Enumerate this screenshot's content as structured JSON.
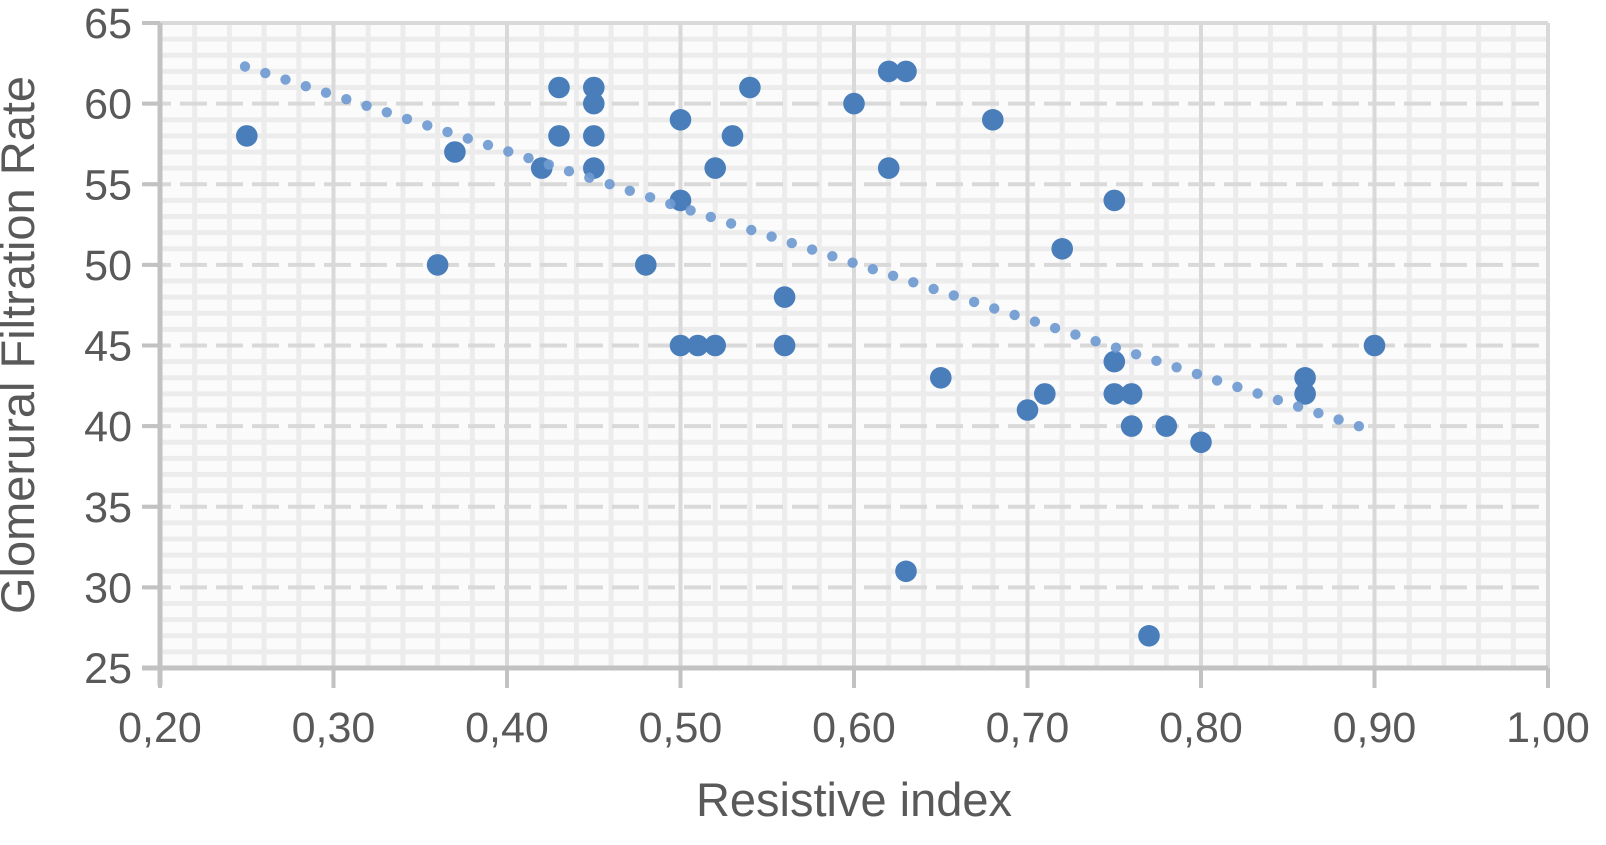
{
  "chart_data": {
    "type": "scatter",
    "title": "",
    "xlabel": "Resistive index",
    "ylabel": "Glomerural Filtration Rate",
    "xlim": [
      0.2,
      1.0
    ],
    "ylim": [
      25,
      65
    ],
    "grid": "on",
    "legend": "none",
    "x_ticks": {
      "values": [
        0.2,
        0.3,
        0.4,
        0.5,
        0.6,
        0.7,
        0.8,
        0.9,
        1.0
      ],
      "labels": [
        "0,20",
        "0,30",
        "0,40",
        "0,50",
        "0,60",
        "0,70",
        "0,80",
        "0,90",
        "1,00"
      ]
    },
    "y_ticks": {
      "values": [
        25,
        30,
        35,
        40,
        45,
        50,
        55,
        60,
        65
      ],
      "labels": [
        "25",
        "30",
        "35",
        "40",
        "45",
        "50",
        "55",
        "60",
        "65"
      ]
    },
    "minor_grid": {
      "x_step": 0.02,
      "y_step": 1
    },
    "points": [
      [
        0.25,
        58
      ],
      [
        0.36,
        50
      ],
      [
        0.37,
        57
      ],
      [
        0.42,
        56
      ],
      [
        0.43,
        61
      ],
      [
        0.43,
        58
      ],
      [
        0.45,
        61
      ],
      [
        0.45,
        60
      ],
      [
        0.45,
        58
      ],
      [
        0.45,
        56
      ],
      [
        0.48,
        50
      ],
      [
        0.5,
        59
      ],
      [
        0.5,
        54
      ],
      [
        0.5,
        45
      ],
      [
        0.51,
        45
      ],
      [
        0.52,
        45
      ],
      [
        0.52,
        56
      ],
      [
        0.53,
        58
      ],
      [
        0.54,
        61
      ],
      [
        0.56,
        48
      ],
      [
        0.56,
        45
      ],
      [
        0.6,
        60
      ],
      [
        0.62,
        62
      ],
      [
        0.63,
        62
      ],
      [
        0.62,
        56
      ],
      [
        0.63,
        31
      ],
      [
        0.65,
        43
      ],
      [
        0.68,
        59
      ],
      [
        0.7,
        41
      ],
      [
        0.71,
        42
      ],
      [
        0.72,
        51
      ],
      [
        0.75,
        54
      ],
      [
        0.75,
        44
      ],
      [
        0.75,
        42
      ],
      [
        0.76,
        42
      ],
      [
        0.76,
        40
      ],
      [
        0.77,
        27
      ],
      [
        0.78,
        40
      ],
      [
        0.8,
        39
      ],
      [
        0.86,
        43
      ],
      [
        0.86,
        42
      ],
      [
        0.9,
        45
      ]
    ],
    "trendline": {
      "style": "dotted",
      "x_start": 0.249,
      "x_end": 0.891,
      "slope": -34.74,
      "intercept": 70.95,
      "dot_count": 56
    },
    "colors": {
      "point": "#4a7ebb",
      "trend": "#6f9ad1",
      "major_grid": "#d9d9d9",
      "minor_grid": "#ececec",
      "axis_line": "#c2c2c2",
      "text": "#595959",
      "plot_bg": "#fbfbfb",
      "page_bg": "#ffffff"
    }
  }
}
